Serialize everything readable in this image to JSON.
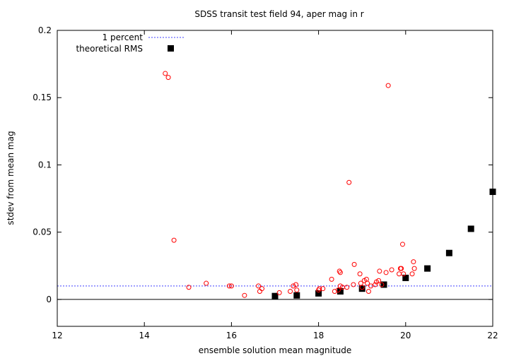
{
  "chart_data": {
    "type": "scatter",
    "title": "SDSS transit test field 94, aper mag in r",
    "xlabel": "ensemble solution mean magnitude",
    "ylabel": "stdev from mean mag",
    "xlim": [
      12,
      22
    ],
    "ylim": [
      -0.02,
      0.2
    ],
    "xticks": [
      "12",
      "14",
      "16",
      "18",
      "20",
      "22"
    ],
    "yticks": [
      "0",
      "0.05",
      "0.1",
      "0.15",
      "0.2"
    ],
    "grid": false,
    "legend_position": "top-left",
    "zero_line": 0,
    "series": [
      {
        "name": "1 percent",
        "kind": "hline",
        "value": 0.01,
        "color": "#4040ff",
        "dash": "dotted"
      },
      {
        "name": "theoretical RMS",
        "kind": "squares",
        "color": "#000000",
        "points": [
          {
            "x": 17.0,
            "y": 0.0025
          },
          {
            "x": 17.5,
            "y": 0.003
          },
          {
            "x": 18.0,
            "y": 0.0045
          },
          {
            "x": 18.5,
            "y": 0.006
          },
          {
            "x": 19.0,
            "y": 0.008
          },
          {
            "x": 19.5,
            "y": 0.011
          },
          {
            "x": 20.0,
            "y": 0.016
          },
          {
            "x": 20.5,
            "y": 0.023
          },
          {
            "x": 21.0,
            "y": 0.0345
          },
          {
            "x": 21.5,
            "y": 0.0525
          },
          {
            "x": 22.0,
            "y": 0.08
          }
        ]
      },
      {
        "kind": "circles",
        "color": "#ff0000",
        "points": [
          {
            "x": 14.48,
            "y": 0.168
          },
          {
            "x": 14.55,
            "y": 0.165
          },
          {
            "x": 14.68,
            "y": 0.044
          },
          {
            "x": 15.02,
            "y": 0.009
          },
          {
            "x": 15.42,
            "y": 0.012
          },
          {
            "x": 15.95,
            "y": 0.01
          },
          {
            "x": 16.0,
            "y": 0.01
          },
          {
            "x": 16.3,
            "y": 0.003
          },
          {
            "x": 16.62,
            "y": 0.01
          },
          {
            "x": 16.65,
            "y": 0.006
          },
          {
            "x": 16.7,
            "y": 0.008
          },
          {
            "x": 17.1,
            "y": 0.005
          },
          {
            "x": 17.35,
            "y": 0.006
          },
          {
            "x": 17.42,
            "y": 0.01
          },
          {
            "x": 17.48,
            "y": 0.011
          },
          {
            "x": 17.5,
            "y": 0.007
          },
          {
            "x": 18.0,
            "y": 0.007
          },
          {
            "x": 18.02,
            "y": 0.008
          },
          {
            "x": 18.1,
            "y": 0.008
          },
          {
            "x": 18.3,
            "y": 0.015
          },
          {
            "x": 18.37,
            "y": 0.006
          },
          {
            "x": 18.45,
            "y": 0.007
          },
          {
            "x": 18.48,
            "y": 0.021
          },
          {
            "x": 18.5,
            "y": 0.02
          },
          {
            "x": 18.5,
            "y": 0.01
          },
          {
            "x": 18.55,
            "y": 0.009
          },
          {
            "x": 18.65,
            "y": 0.009
          },
          {
            "x": 18.7,
            "y": 0.087
          },
          {
            "x": 18.8,
            "y": 0.011
          },
          {
            "x": 18.82,
            "y": 0.026
          },
          {
            "x": 18.95,
            "y": 0.019
          },
          {
            "x": 18.97,
            "y": 0.012
          },
          {
            "x": 19.0,
            "y": 0.009
          },
          {
            "x": 19.05,
            "y": 0.014
          },
          {
            "x": 19.1,
            "y": 0.015
          },
          {
            "x": 19.12,
            "y": 0.012
          },
          {
            "x": 19.15,
            "y": 0.006
          },
          {
            "x": 19.2,
            "y": 0.01
          },
          {
            "x": 19.3,
            "y": 0.011
          },
          {
            "x": 19.33,
            "y": 0.013
          },
          {
            "x": 19.38,
            "y": 0.014
          },
          {
            "x": 19.4,
            "y": 0.021
          },
          {
            "x": 19.45,
            "y": 0.011
          },
          {
            "x": 19.55,
            "y": 0.02
          },
          {
            "x": 19.6,
            "y": 0.159
          },
          {
            "x": 19.68,
            "y": 0.022
          },
          {
            "x": 19.85,
            "y": 0.019
          },
          {
            "x": 19.88,
            "y": 0.023
          },
          {
            "x": 19.9,
            "y": 0.023
          },
          {
            "x": 19.93,
            "y": 0.041
          },
          {
            "x": 19.95,
            "y": 0.019
          },
          {
            "x": 20.15,
            "y": 0.019
          },
          {
            "x": 20.18,
            "y": 0.028
          },
          {
            "x": 20.2,
            "y": 0.023
          }
        ]
      }
    ]
  }
}
